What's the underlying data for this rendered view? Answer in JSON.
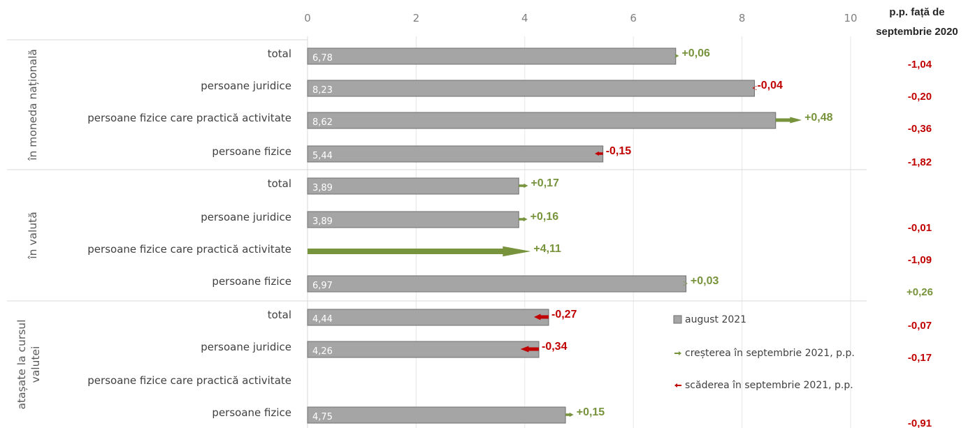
{
  "chart_data": {
    "type": "bar",
    "orientation": "horizontal",
    "xlim": [
      0,
      10
    ],
    "xticks": [
      "0",
      "2",
      "4",
      "6",
      "8",
      "10"
    ],
    "grid": true,
    "colors": {
      "bar": "#a5a5a5",
      "bar_border": "#6e6e6e",
      "increase": "#77933c",
      "decrease": "#c00000"
    },
    "groups": [
      {
        "label": "în moneda națională",
        "rows": [
          {
            "category": "total",
            "value": 6.78,
            "value_label": "6,78",
            "change": 0.06,
            "change_label": "+0,06",
            "pp": "-1,04"
          },
          {
            "category": "persoane juridice",
            "value": 8.23,
            "value_label": "8,23",
            "change": -0.04,
            "change_label": "-0,04",
            "pp": "-0,20"
          },
          {
            "category": "persoane fizice care practică activitate",
            "value": 8.62,
            "value_label": "8,62",
            "change": 0.48,
            "change_label": "+0,48",
            "pp": "-0,36"
          },
          {
            "category": "persoane fizice",
            "value": 5.44,
            "value_label": "5,44",
            "change": -0.15,
            "change_label": "-0,15",
            "pp": "-1,82"
          }
        ]
      },
      {
        "label": "în valută",
        "rows": [
          {
            "category": "total",
            "value": 3.89,
            "value_label": "3,89",
            "change": 0.17,
            "change_label": "+0,17",
            "pp": ""
          },
          {
            "category": "persoane juridice",
            "value": 3.89,
            "value_label": "3,89",
            "change": 0.16,
            "change_label": "+0,16",
            "pp": "-0,01"
          },
          {
            "category": "persoane fizice care practică activitate",
            "value": 0,
            "value_label": "",
            "change": 4.11,
            "change_label": "+4,11",
            "pp": "-1,09"
          },
          {
            "category": "persoane fizice",
            "value": 6.97,
            "value_label": "6,97",
            "change": 0.03,
            "change_label": "+0,03",
            "pp": "+0,26"
          }
        ]
      },
      {
        "label": [
          "atașate la cursul",
          "valutei"
        ],
        "rows": [
          {
            "category": "total",
            "value": 4.44,
            "value_label": "4,44",
            "change": -0.27,
            "change_label": "-0,27",
            "pp": "-0,07"
          },
          {
            "category": "persoane juridice",
            "value": 4.26,
            "value_label": "4,26",
            "change": -0.34,
            "change_label": "-0,34",
            "pp": "-0,17"
          },
          {
            "category": "persoane fizice care practică activitate",
            "value": null,
            "value_label": "",
            "change": null,
            "change_label": "",
            "pp": ""
          },
          {
            "category": "persoane fizice",
            "value": 4.75,
            "value_label": "4,75",
            "change": 0.15,
            "change_label": "+0,15",
            "pp": "-0,91"
          }
        ]
      }
    ],
    "pp_header": [
      "p.p. față de",
      "septembrie 2020"
    ],
    "legend": [
      {
        "label": "august 2021",
        "kind": "bar"
      },
      {
        "label": "creșterea în septembrie 2021, p.p.",
        "kind": "increase"
      },
      {
        "label": "scăderea în septembrie 2021, p.p.",
        "kind": "decrease"
      }
    ],
    "legend_position": "bottom-right"
  }
}
